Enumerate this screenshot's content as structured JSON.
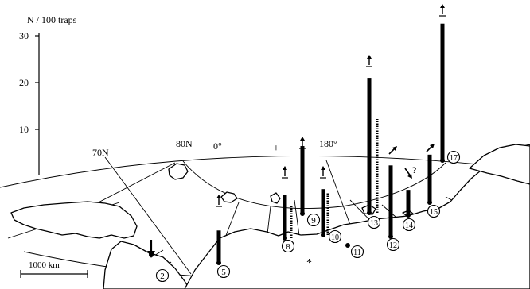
{
  "y_axis": {
    "title": "N / 100 traps",
    "ticks": [
      "30",
      "20",
      "10"
    ],
    "ylim": [
      0,
      30
    ]
  },
  "graticule": {
    "lat_label": "70N",
    "lat_label_2": "80N",
    "lon_label_0": "0°",
    "lon_label_180": "180°"
  },
  "scale_bar": {
    "label": "1000 km"
  },
  "marks": {
    "plus": "+",
    "star": "*",
    "question": "?"
  },
  "chart_data": {
    "type": "bar",
    "title": "",
    "ylabel": "N / 100 traps",
    "ylim": [
      0,
      30
    ],
    "sites": [
      {
        "id": "2",
        "value": 0
      },
      {
        "id": "5",
        "value": 6.9
      },
      {
        "id": "8",
        "value": 9.3
      },
      {
        "id": "9",
        "value": 14.4
      },
      {
        "id": "10",
        "value": 9.8
      },
      {
        "id": "11",
        "value": 0
      },
      {
        "id": "12",
        "value": 15.2
      },
      {
        "id": "13",
        "value": 28.8
      },
      {
        "id": "14",
        "value": 5.4
      },
      {
        "id": "15",
        "value": 10.2
      },
      {
        "id": "17",
        "value": 29.2
      }
    ],
    "second_series": [
      {
        "id": "8",
        "value": 7.0
      },
      {
        "id": "10",
        "value": 9.0
      },
      {
        "id": "13",
        "value": 20.0
      }
    ]
  }
}
